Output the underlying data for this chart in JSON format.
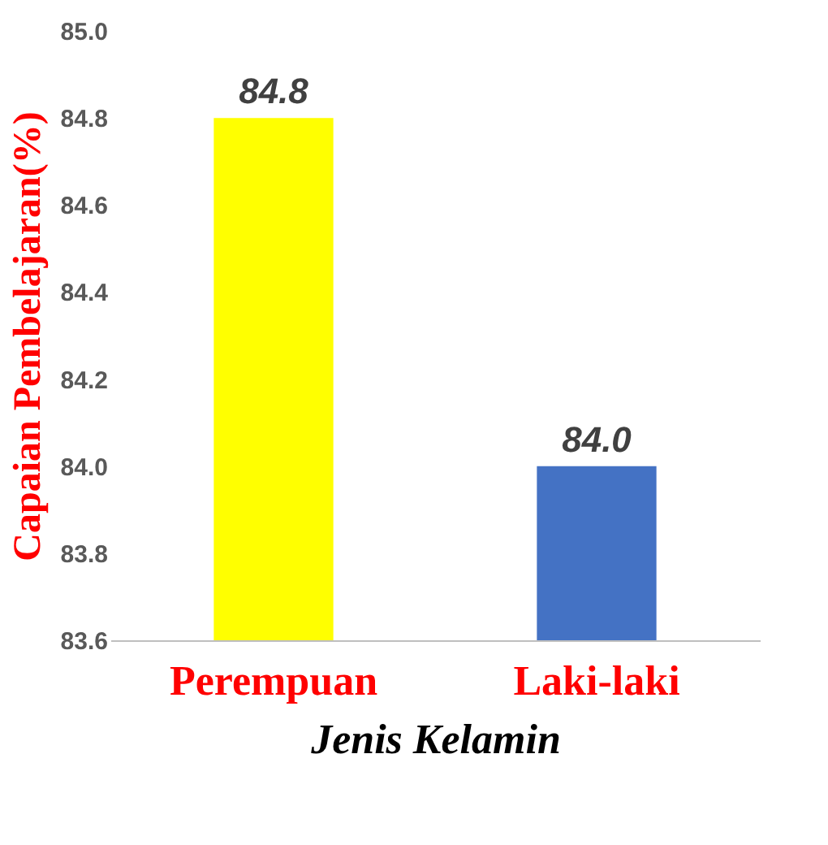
{
  "chart_data": {
    "type": "bar",
    "xlabel": "Jenis Kelamin",
    "ylabel": "Capaian Pembelajaran(%)",
    "categories": [
      "Perempuan",
      "Laki-laki"
    ],
    "values": [
      84.8,
      84.0
    ],
    "value_labels": [
      "84.8",
      "84.0"
    ],
    "colors": [
      "#ffff00",
      "#4472c4"
    ],
    "ylim": [
      83.6,
      85.0
    ],
    "yticks": [
      83.6,
      83.8,
      {
        "value": 84,
        "label": "84.0"
      },
      84.2,
      84.4,
      84.6,
      84.8,
      {
        "value": 85,
        "label": "85.0"
      }
    ]
  }
}
